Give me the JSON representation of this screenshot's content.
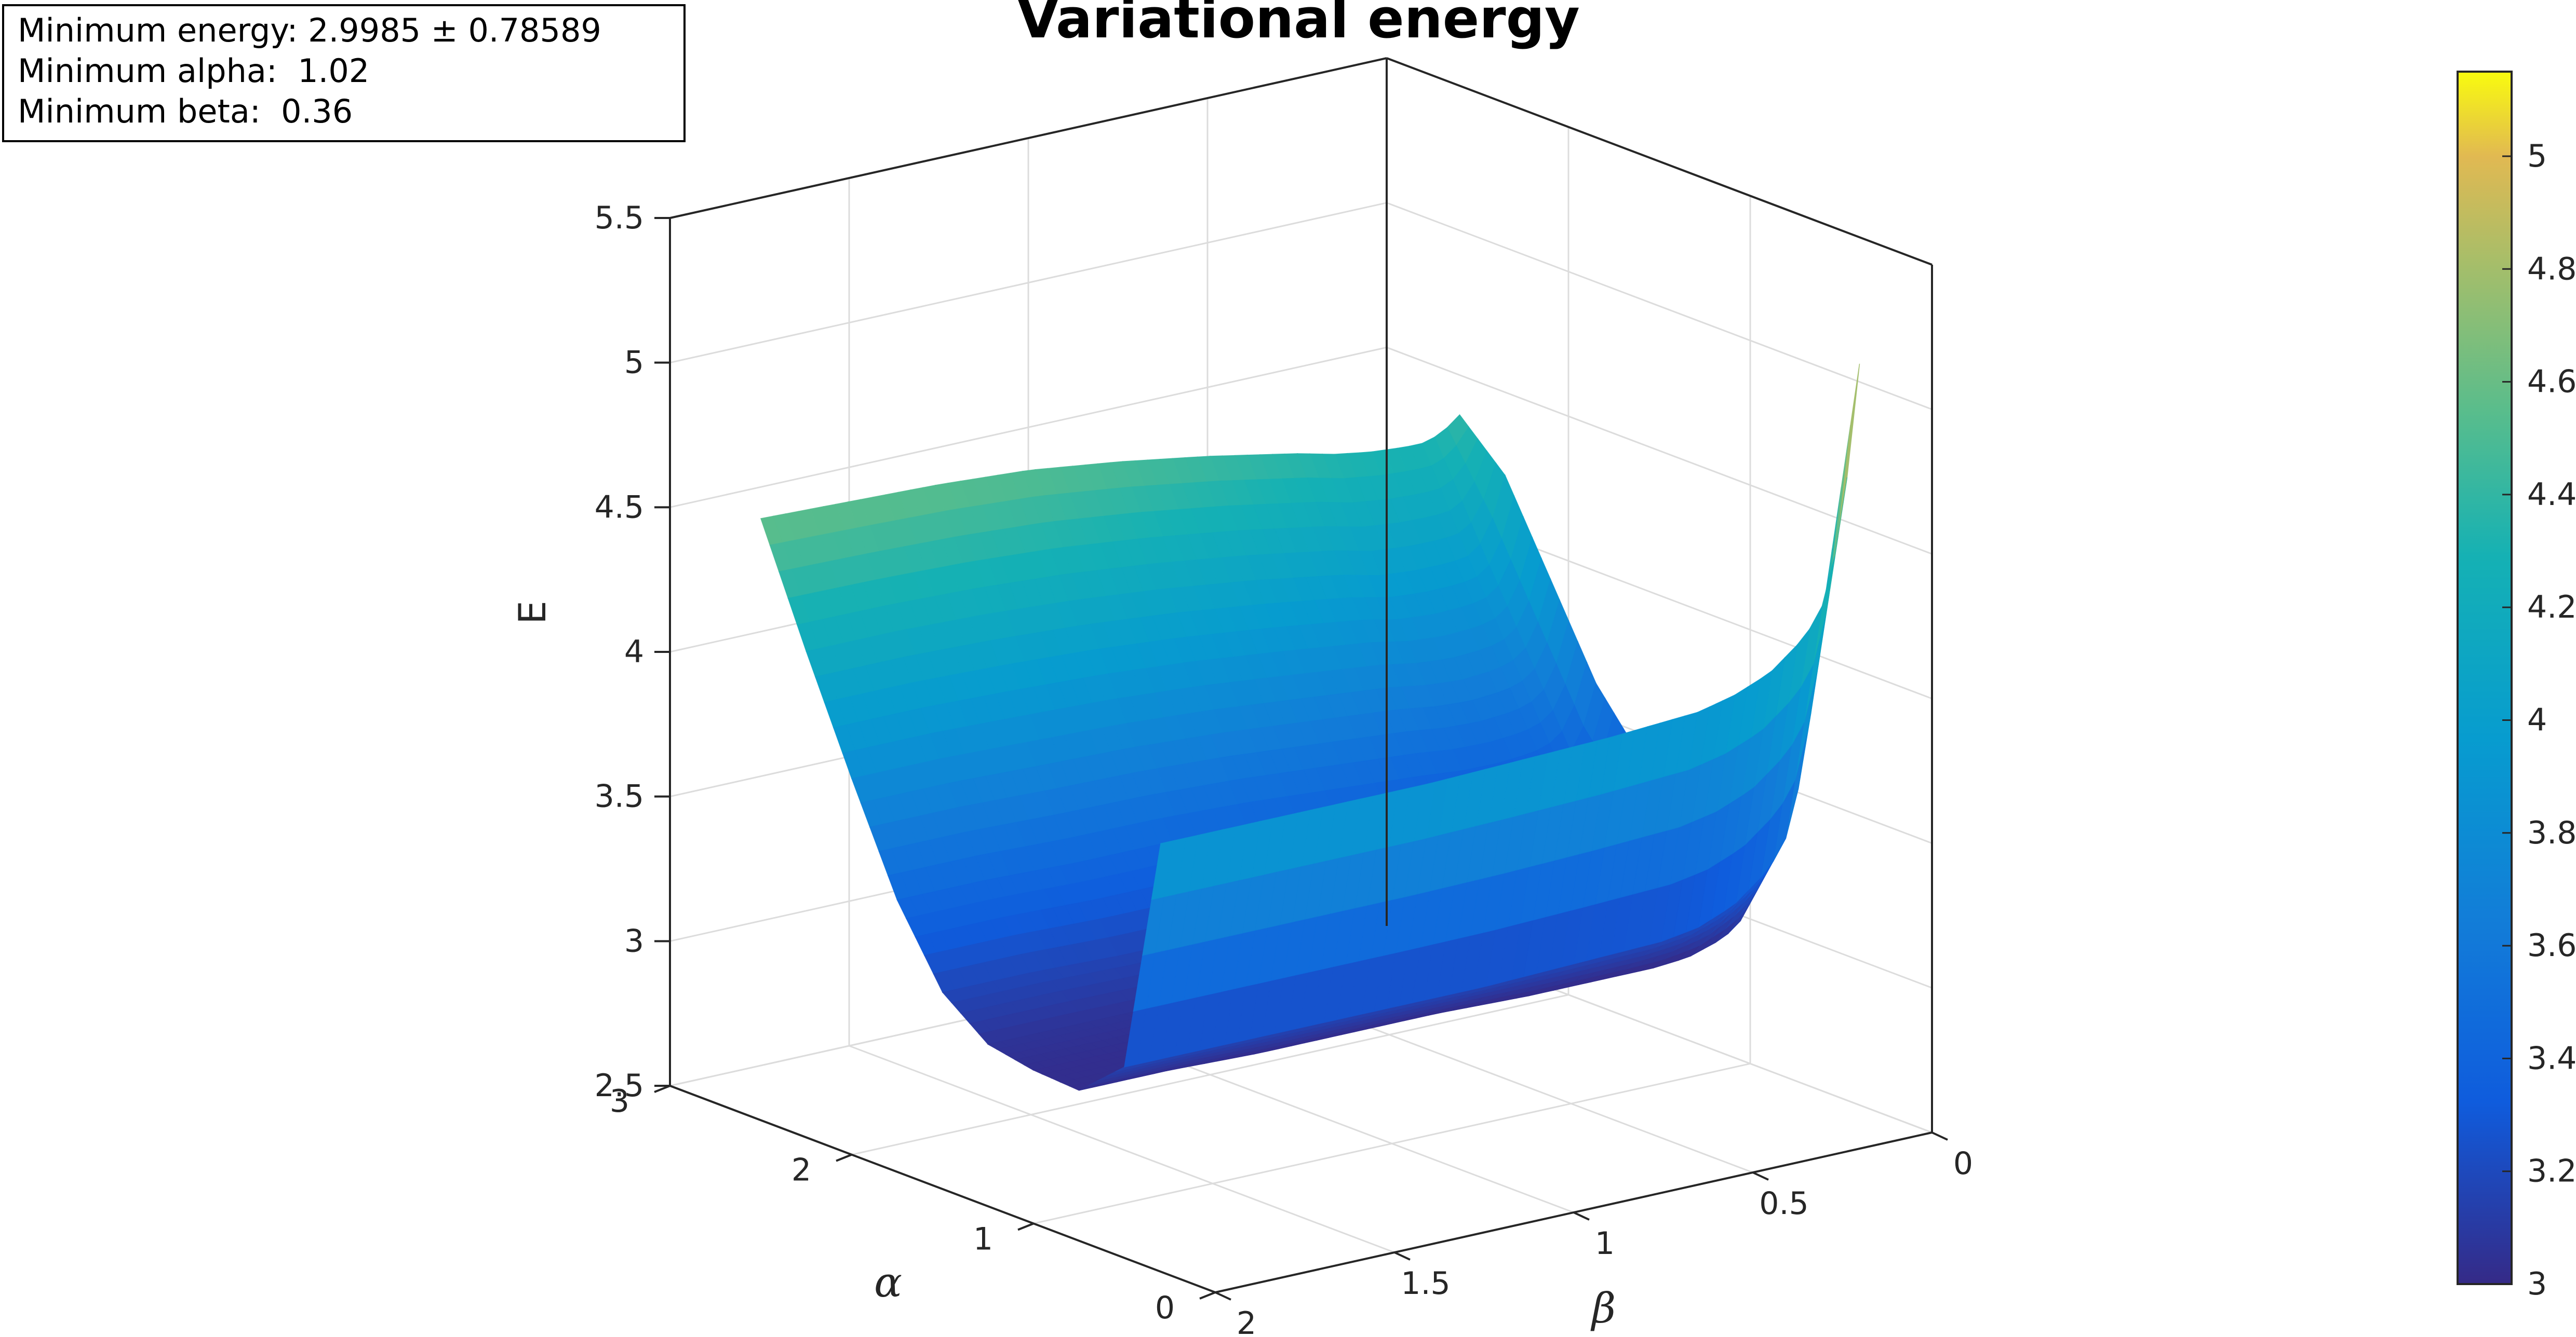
{
  "chart_data": {
    "type": "surface",
    "title": "Variational energy",
    "xlabel": "β",
    "ylabel": "α",
    "zlabel": "E",
    "x_ticks": [
      "0",
      "0.5",
      "1",
      "1.5",
      "2"
    ],
    "y_ticks": [
      "0",
      "1",
      "2",
      "3"
    ],
    "z_ticks": [
      "2.5",
      "3",
      "3.5",
      "4",
      "4.5",
      "5",
      "5.5"
    ],
    "xlim": [
      0,
      2
    ],
    "ylim": [
      0,
      3
    ],
    "zlim": [
      2.5,
      5.5
    ],
    "grid": true,
    "colorbar": {
      "ticks": [
        "3",
        "3.2",
        "3.4",
        "3.6",
        "3.8",
        "4",
        "4.2",
        "4.4",
        "4.6",
        "4.8",
        "5"
      ],
      "range": [
        3.0,
        5.15
      ],
      "colormap": "parula"
    },
    "surface": {
      "alpha": [
        0.3,
        0.5,
        0.75,
        1.0,
        1.25,
        1.5,
        1.75,
        2.0,
        2.25,
        2.5
      ],
      "beta": [
        0.05,
        0.1,
        0.15,
        0.2,
        0.3,
        0.4,
        0.5,
        0.75,
        1.0,
        1.25,
        1.5,
        1.75,
        2.0
      ],
      "E": [
        [
          5.1,
          4.55,
          4.3,
          4.2,
          4.1,
          4.05,
          4.02,
          4.0,
          3.99,
          3.98,
          3.98,
          3.98,
          3.98
        ],
        [
          4.2,
          3.7,
          3.45,
          3.35,
          3.25,
          3.2,
          3.18,
          3.17,
          3.16,
          3.16,
          3.16,
          3.16,
          3.16
        ],
        [
          3.6,
          3.25,
          3.1,
          3.05,
          3.01,
          3.0,
          3.0,
          3.0,
          3.01,
          3.01,
          3.01,
          3.02,
          3.02
        ],
        [
          3.4,
          3.12,
          3.04,
          3.01,
          3.0,
          2.9985,
          3.0,
          3.01,
          3.02,
          3.02,
          3.03,
          3.03,
          3.03
        ],
        [
          3.35,
          3.1,
          3.05,
          3.03,
          3.02,
          3.02,
          3.03,
          3.04,
          3.05,
          3.05,
          3.06,
          3.06,
          3.06
        ],
        [
          3.45,
          3.25,
          3.18,
          3.15,
          3.13,
          3.13,
          3.14,
          3.15,
          3.16,
          3.17,
          3.17,
          3.18,
          3.18
        ],
        [
          3.65,
          3.45,
          3.4,
          3.38,
          3.37,
          3.37,
          3.38,
          3.4,
          3.42,
          3.43,
          3.43,
          3.44,
          3.44
        ],
        [
          3.95,
          3.75,
          3.7,
          3.68,
          3.67,
          3.68,
          3.7,
          3.73,
          3.76,
          3.78,
          3.79,
          3.8,
          3.8
        ],
        [
          4.25,
          4.05,
          4.0,
          3.99,
          3.99,
          4.0,
          4.03,
          4.08,
          4.12,
          4.15,
          4.17,
          4.18,
          4.18
        ],
        [
          4.4,
          4.35,
          4.33,
          4.33,
          4.34,
          4.36,
          4.39,
          4.45,
          4.5,
          4.54,
          4.56,
          4.57,
          4.58
        ]
      ]
    },
    "annotation": [
      "Minimum energy: 2.9985 ± 0.78589",
      "Minimum alpha:  1.02",
      "Minimum beta:  0.36"
    ]
  }
}
